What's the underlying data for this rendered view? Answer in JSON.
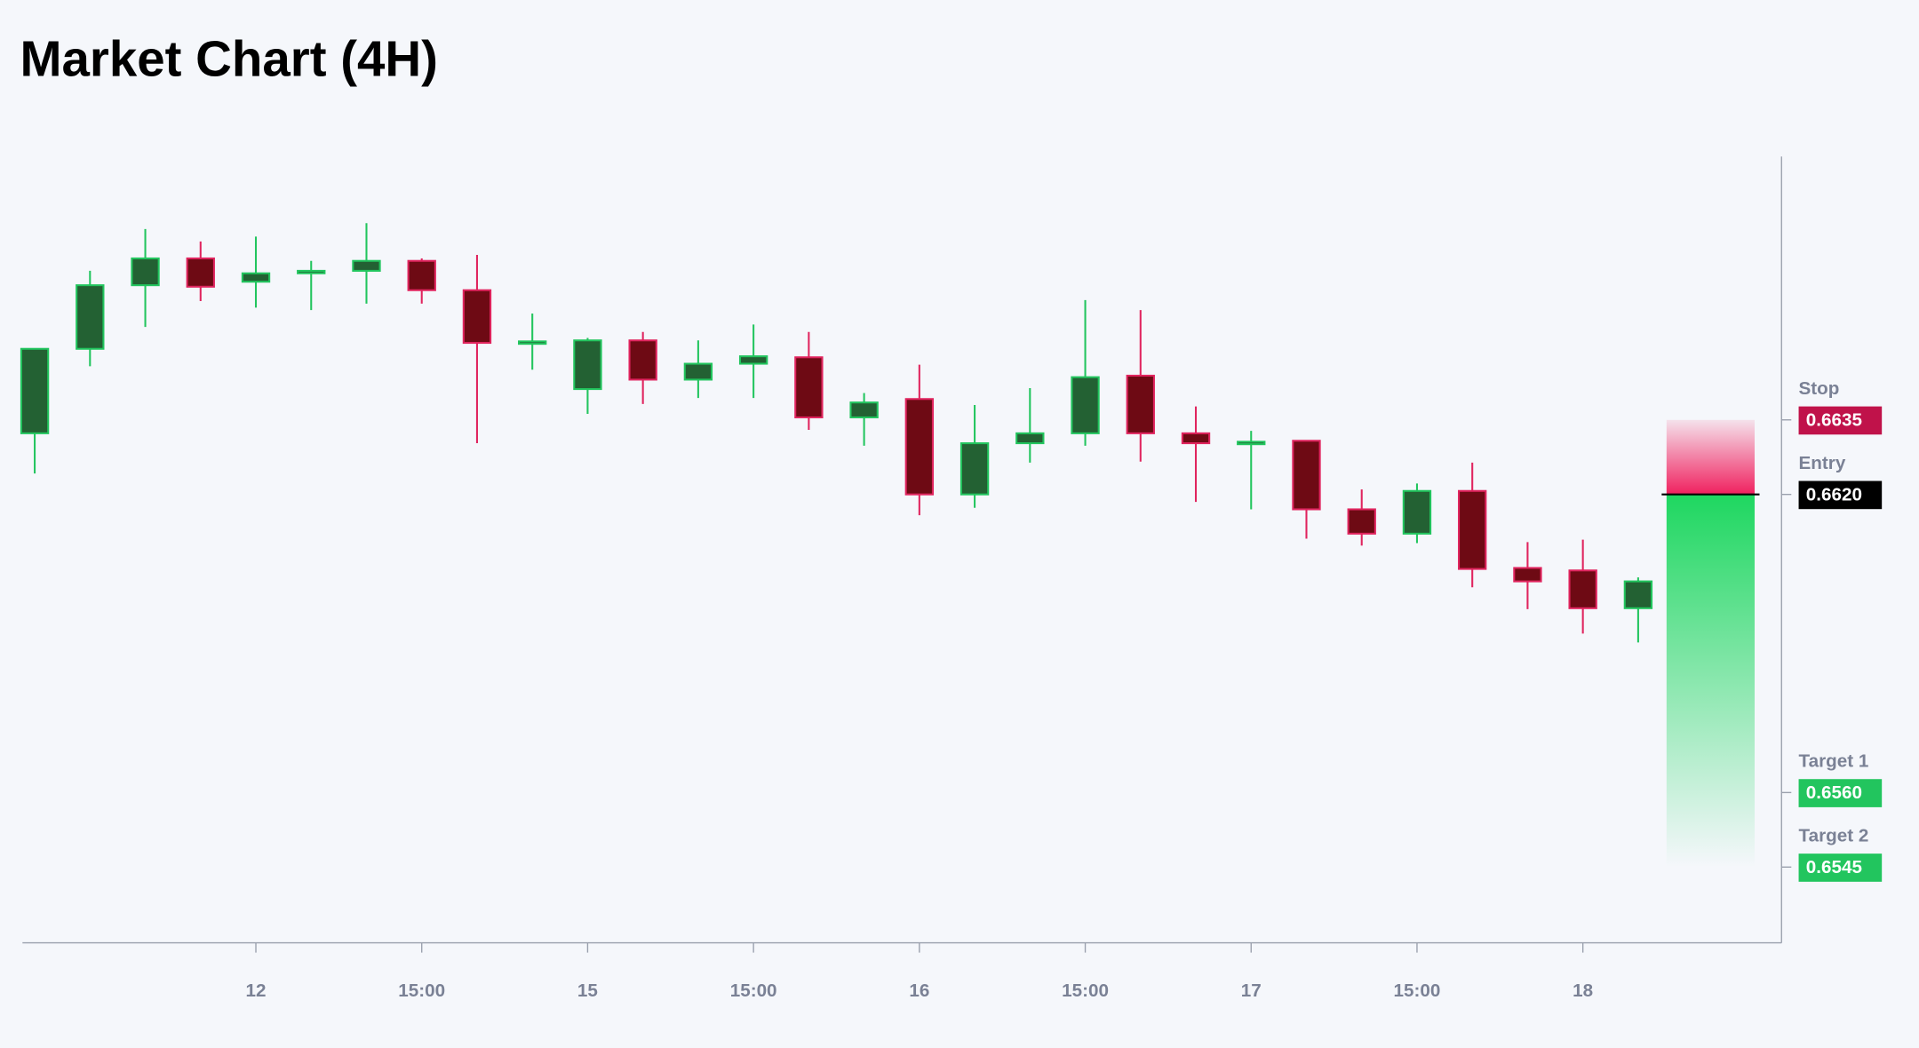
{
  "chart_data": {
    "type": "candlestick",
    "title": "Market Chart (4H)",
    "categories": [
      null,
      null,
      null,
      null,
      "12",
      null,
      null,
      "15:00",
      null,
      null,
      "15",
      null,
      null,
      "15:00",
      null,
      null,
      "16",
      null,
      null,
      "15:00",
      null,
      null,
      "17",
      null,
      null,
      "15:00",
      null,
      null,
      "18",
      null
    ],
    "open": [
      0.66323,
      0.66493,
      0.66621,
      0.66675,
      0.66628,
      0.66645,
      0.6665,
      0.6667,
      0.66611,
      0.66503,
      0.66412,
      0.6651,
      0.66431,
      0.66463,
      0.66476,
      0.66355,
      0.66392,
      0.662,
      0.66303,
      0.66323,
      0.66439,
      0.66323,
      0.66301,
      0.66308,
      0.6617,
      0.66121,
      0.66207,
      0.66052,
      0.66047,
      0.65971
    ],
    "high": [
      0.66493,
      0.6665,
      0.66734,
      0.66709,
      0.66719,
      0.6667,
      0.66746,
      0.66675,
      0.66682,
      0.66564,
      0.66515,
      0.66527,
      0.6651,
      0.66542,
      0.66527,
      0.66404,
      0.66461,
      0.6638,
      0.66414,
      0.66591,
      0.66571,
      0.66377,
      0.66328,
      0.66308,
      0.6621,
      0.66222,
      0.66264,
      0.66104,
      0.66109,
      0.66033
    ],
    "low": [
      0.66242,
      0.66458,
      0.66537,
      0.66589,
      0.66576,
      0.66571,
      0.66584,
      0.66584,
      0.66303,
      0.66451,
      0.66362,
      0.66382,
      0.66394,
      0.66394,
      0.6633,
      0.66298,
      0.66158,
      0.66173,
      0.66264,
      0.66298,
      0.66266,
      0.66185,
      0.6617,
      0.66111,
      0.66097,
      0.66102,
      0.66013,
      0.65969,
      0.6592,
      0.65902
    ],
    "close": [
      0.66493,
      0.66621,
      0.66675,
      0.66618,
      0.66645,
      0.6665,
      0.6667,
      0.66611,
      0.66505,
      0.66508,
      0.6651,
      0.66431,
      0.66463,
      0.66478,
      0.66355,
      0.66385,
      0.662,
      0.66303,
      0.66323,
      0.66436,
      0.66323,
      0.66303,
      0.66306,
      0.6617,
      0.66121,
      0.66207,
      0.6605,
      0.66025,
      0.65971,
      0.66025
    ],
    "up_color": "#22c55e",
    "down_color": "#e0245e",
    "ylim": [
      0.653,
      0.6688
    ],
    "levels": {
      "names": [
        "Stop",
        "Entry",
        "Target 1",
        "Target 2"
      ],
      "values": [
        0.6635,
        0.662,
        0.656,
        0.6545
      ],
      "value_labels": [
        "0.6635",
        "0.6620",
        "0.6560",
        "0.6545"
      ],
      "colors": [
        "#c0124a",
        "#000000",
        "#22c55e",
        "#22c55e"
      ]
    }
  }
}
